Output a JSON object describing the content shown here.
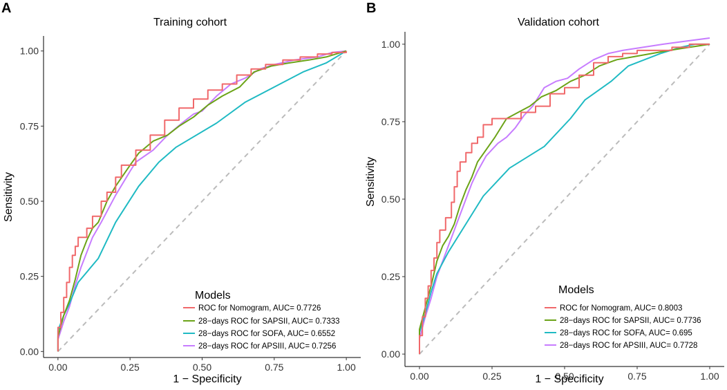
{
  "colors": {
    "nomogram": "#F0686A",
    "sapsii": "#6BA317",
    "sofa": "#1FBAC3",
    "apsiii": "#C77CFF",
    "diagonal": "#BBBBBB"
  },
  "chart_data": [
    {
      "type": "line",
      "panel_label": "A",
      "title": "Training cohort",
      "xlabel": "1 − Specificity",
      "ylabel": "Sensitivity",
      "xlim": [
        -0.05,
        1.05
      ],
      "ylim": [
        -0.02,
        1.05
      ],
      "xticks": [
        "0.00",
        "0.25",
        "0.50",
        "0.75",
        "1.00"
      ],
      "yticks": [
        "0.00",
        "0.25",
        "0.50",
        "0.75",
        "1.00"
      ],
      "legend_title": "Models",
      "legend_position": "bottom-right",
      "diagonal": true,
      "series": [
        {
          "name": "ROC for Nomogram, AUC= 0.7726",
          "color_key": "nomogram",
          "step": true,
          "points": [
            [
              0,
              0
            ],
            [
              0,
              0.08
            ],
            [
              0.01,
              0.13
            ],
            [
              0.02,
              0.18
            ],
            [
              0.03,
              0.23
            ],
            [
              0.04,
              0.28
            ],
            [
              0.05,
              0.32
            ],
            [
              0.06,
              0.35
            ],
            [
              0.07,
              0.38
            ],
            [
              0.1,
              0.41
            ],
            [
              0.12,
              0.45
            ],
            [
              0.15,
              0.5
            ],
            [
              0.17,
              0.53
            ],
            [
              0.2,
              0.58
            ],
            [
              0.22,
              0.62
            ],
            [
              0.27,
              0.67
            ],
            [
              0.32,
              0.72
            ],
            [
              0.37,
              0.77
            ],
            [
              0.42,
              0.81
            ],
            [
              0.47,
              0.84
            ],
            [
              0.52,
              0.87
            ],
            [
              0.57,
              0.89
            ],
            [
              0.62,
              0.92
            ],
            [
              0.67,
              0.94
            ],
            [
              0.72,
              0.955
            ],
            [
              0.78,
              0.97
            ],
            [
              0.84,
              0.98
            ],
            [
              0.9,
              0.99
            ],
            [
              0.95,
              0.995
            ],
            [
              1,
              1
            ]
          ]
        },
        {
          "name": "28−days ROC for SAPSII, AUC= 0.7333",
          "color_key": "sapsii",
          "points": [
            [
              0,
              0
            ],
            [
              0,
              0.05
            ],
            [
              0.02,
              0.12
            ],
            [
              0.04,
              0.17
            ],
            [
              0.06,
              0.24
            ],
            [
              0.08,
              0.32
            ],
            [
              0.1,
              0.37
            ],
            [
              0.12,
              0.41
            ],
            [
              0.14,
              0.43
            ],
            [
              0.17,
              0.5
            ],
            [
              0.2,
              0.55
            ],
            [
              0.25,
              0.62
            ],
            [
              0.28,
              0.66
            ],
            [
              0.33,
              0.7
            ],
            [
              0.38,
              0.72
            ],
            [
              0.42,
              0.75
            ],
            [
              0.47,
              0.78
            ],
            [
              0.52,
              0.82
            ],
            [
              0.57,
              0.85
            ],
            [
              0.63,
              0.88
            ],
            [
              0.68,
              0.93
            ],
            [
              0.74,
              0.95
            ],
            [
              0.8,
              0.96
            ],
            [
              0.87,
              0.97
            ],
            [
              0.93,
              0.98
            ],
            [
              1,
              1
            ]
          ]
        },
        {
          "name": "28−days ROC for SOFA, AUC= 0.6552",
          "color_key": "sofa",
          "points": [
            [
              0,
              0
            ],
            [
              0,
              0.07
            ],
            [
              0.02,
              0.12
            ],
            [
              0.04,
              0.16
            ],
            [
              0.07,
              0.23
            ],
            [
              0.14,
              0.31
            ],
            [
              0.2,
              0.43
            ],
            [
              0.28,
              0.55
            ],
            [
              0.35,
              0.63
            ],
            [
              0.41,
              0.68
            ],
            [
              0.55,
              0.76
            ],
            [
              0.65,
              0.83
            ],
            [
              0.75,
              0.88
            ],
            [
              0.85,
              0.93
            ],
            [
              0.93,
              0.96
            ],
            [
              1,
              1
            ]
          ]
        },
        {
          "name": "28−days ROC for APSIII, AUC= 0.7256",
          "color_key": "apsiii",
          "points": [
            [
              0,
              0
            ],
            [
              0,
              0.04
            ],
            [
              0.02,
              0.1
            ],
            [
              0.04,
              0.15
            ],
            [
              0.06,
              0.22
            ],
            [
              0.08,
              0.28
            ],
            [
              0.1,
              0.33
            ],
            [
              0.12,
              0.38
            ],
            [
              0.15,
              0.43
            ],
            [
              0.2,
              0.52
            ],
            [
              0.25,
              0.6
            ],
            [
              0.27,
              0.63
            ],
            [
              0.33,
              0.67
            ],
            [
              0.38,
              0.72
            ],
            [
              0.43,
              0.76
            ],
            [
              0.47,
              0.79
            ],
            [
              0.5,
              0.8
            ],
            [
              0.55,
              0.85
            ],
            [
              0.6,
              0.89
            ],
            [
              0.65,
              0.91
            ],
            [
              0.7,
              0.94
            ],
            [
              0.75,
              0.955
            ],
            [
              0.82,
              0.97
            ],
            [
              0.9,
              0.98
            ],
            [
              0.95,
              0.995
            ],
            [
              1,
              1
            ]
          ]
        }
      ]
    },
    {
      "type": "line",
      "panel_label": "B",
      "title": "Validation cohort",
      "xlabel": "1 − Specificity",
      "ylabel": "Sensitivity",
      "xlim": [
        -0.05,
        1.05
      ],
      "ylim": [
        -0.04,
        1.04
      ],
      "xticks": [
        "0.00",
        "0.25",
        "0.50",
        "0.75",
        "1.00"
      ],
      "yticks": [
        "0.00",
        "0.25",
        "0.50",
        "0.75",
        "1.00"
      ],
      "legend_title": "Models",
      "legend_position": "bottom-right",
      "diagonal": true,
      "series": [
        {
          "name": "ROC for Nomogram, AUC= 0.8003",
          "color_key": "nomogram",
          "step": true,
          "points": [
            [
              0,
              0
            ],
            [
              0,
              0.06
            ],
            [
              0.01,
              0.12
            ],
            [
              0.02,
              0.18
            ],
            [
              0.03,
              0.22
            ],
            [
              0.04,
              0.27
            ],
            [
              0.05,
              0.31
            ],
            [
              0.06,
              0.36
            ],
            [
              0.07,
              0.4
            ],
            [
              0.09,
              0.44
            ],
            [
              0.11,
              0.49
            ],
            [
              0.12,
              0.54
            ],
            [
              0.13,
              0.59
            ],
            [
              0.14,
              0.62
            ],
            [
              0.16,
              0.65
            ],
            [
              0.18,
              0.68
            ],
            [
              0.2,
              0.7
            ],
            [
              0.22,
              0.74
            ],
            [
              0.25,
              0.76
            ],
            [
              0.3,
              0.76
            ],
            [
              0.35,
              0.78
            ],
            [
              0.4,
              0.8
            ],
            [
              0.45,
              0.84
            ],
            [
              0.5,
              0.86
            ],
            [
              0.55,
              0.9
            ],
            [
              0.6,
              0.94
            ],
            [
              0.65,
              0.96
            ],
            [
              0.7,
              0.97
            ],
            [
              0.75,
              0.98
            ],
            [
              0.8,
              0.98
            ],
            [
              0.87,
              0.99
            ],
            [
              0.93,
              1
            ],
            [
              1,
              1
            ]
          ]
        },
        {
          "name": "28−days ROC for SAPSII, AUC= 0.7736",
          "color_key": "sapsii",
          "points": [
            [
              0,
              0
            ],
            [
              0,
              0.08
            ],
            [
              0.02,
              0.15
            ],
            [
              0.04,
              0.22
            ],
            [
              0.06,
              0.3
            ],
            [
              0.08,
              0.35
            ],
            [
              0.1,
              0.38
            ],
            [
              0.12,
              0.42
            ],
            [
              0.14,
              0.48
            ],
            [
              0.16,
              0.53
            ],
            [
              0.18,
              0.57
            ],
            [
              0.2,
              0.62
            ],
            [
              0.23,
              0.66
            ],
            [
              0.26,
              0.7
            ],
            [
              0.3,
              0.76
            ],
            [
              0.34,
              0.78
            ],
            [
              0.38,
              0.8
            ],
            [
              0.42,
              0.83
            ],
            [
              0.47,
              0.85
            ],
            [
              0.52,
              0.88
            ],
            [
              0.57,
              0.9
            ],
            [
              0.62,
              0.93
            ],
            [
              0.68,
              0.95
            ],
            [
              0.74,
              0.96
            ],
            [
              0.8,
              0.97
            ],
            [
              0.86,
              0.98
            ],
            [
              0.93,
              0.99
            ],
            [
              1,
              1
            ]
          ]
        },
        {
          "name": "28−days ROC for SOFA, AUC= 0.695",
          "color_key": "sofa",
          "points": [
            [
              0,
              0
            ],
            [
              0,
              0.07
            ],
            [
              0.02,
              0.13
            ],
            [
              0.04,
              0.2
            ],
            [
              0.06,
              0.26
            ],
            [
              0.1,
              0.33
            ],
            [
              0.16,
              0.42
            ],
            [
              0.22,
              0.51
            ],
            [
              0.31,
              0.6
            ],
            [
              0.43,
              0.67
            ],
            [
              0.52,
              0.76
            ],
            [
              0.57,
              0.82
            ],
            [
              0.66,
              0.88
            ],
            [
              0.72,
              0.93
            ],
            [
              0.83,
              0.97
            ],
            [
              0.9,
              0.99
            ],
            [
              0.95,
              1
            ],
            [
              1,
              1
            ]
          ]
        },
        {
          "name": "28−days ROC for APSIII, AUC= 0.7728",
          "color_key": "apsiii",
          "points": [
            [
              0,
              0
            ],
            [
              0,
              0.05
            ],
            [
              0.02,
              0.12
            ],
            [
              0.04,
              0.18
            ],
            [
              0.06,
              0.25
            ],
            [
              0.08,
              0.3
            ],
            [
              0.1,
              0.35
            ],
            [
              0.12,
              0.4
            ],
            [
              0.14,
              0.45
            ],
            [
              0.16,
              0.5
            ],
            [
              0.18,
              0.55
            ],
            [
              0.2,
              0.59
            ],
            [
              0.23,
              0.64
            ],
            [
              0.27,
              0.68
            ],
            [
              0.3,
              0.7
            ],
            [
              0.33,
              0.73
            ],
            [
              0.36,
              0.77
            ],
            [
              0.39,
              0.8
            ],
            [
              0.43,
              0.86
            ],
            [
              0.47,
              0.88
            ],
            [
              0.51,
              0.89
            ],
            [
              0.55,
              0.92
            ],
            [
              0.6,
              0.95
            ],
            [
              0.65,
              0.97
            ],
            [
              0.7,
              0.98
            ],
            [
              0.77,
              0.99
            ],
            [
              0.84,
              1
            ],
            [
              0.92,
              1.01
            ],
            [
              1,
              1.02
            ]
          ]
        }
      ]
    }
  ]
}
